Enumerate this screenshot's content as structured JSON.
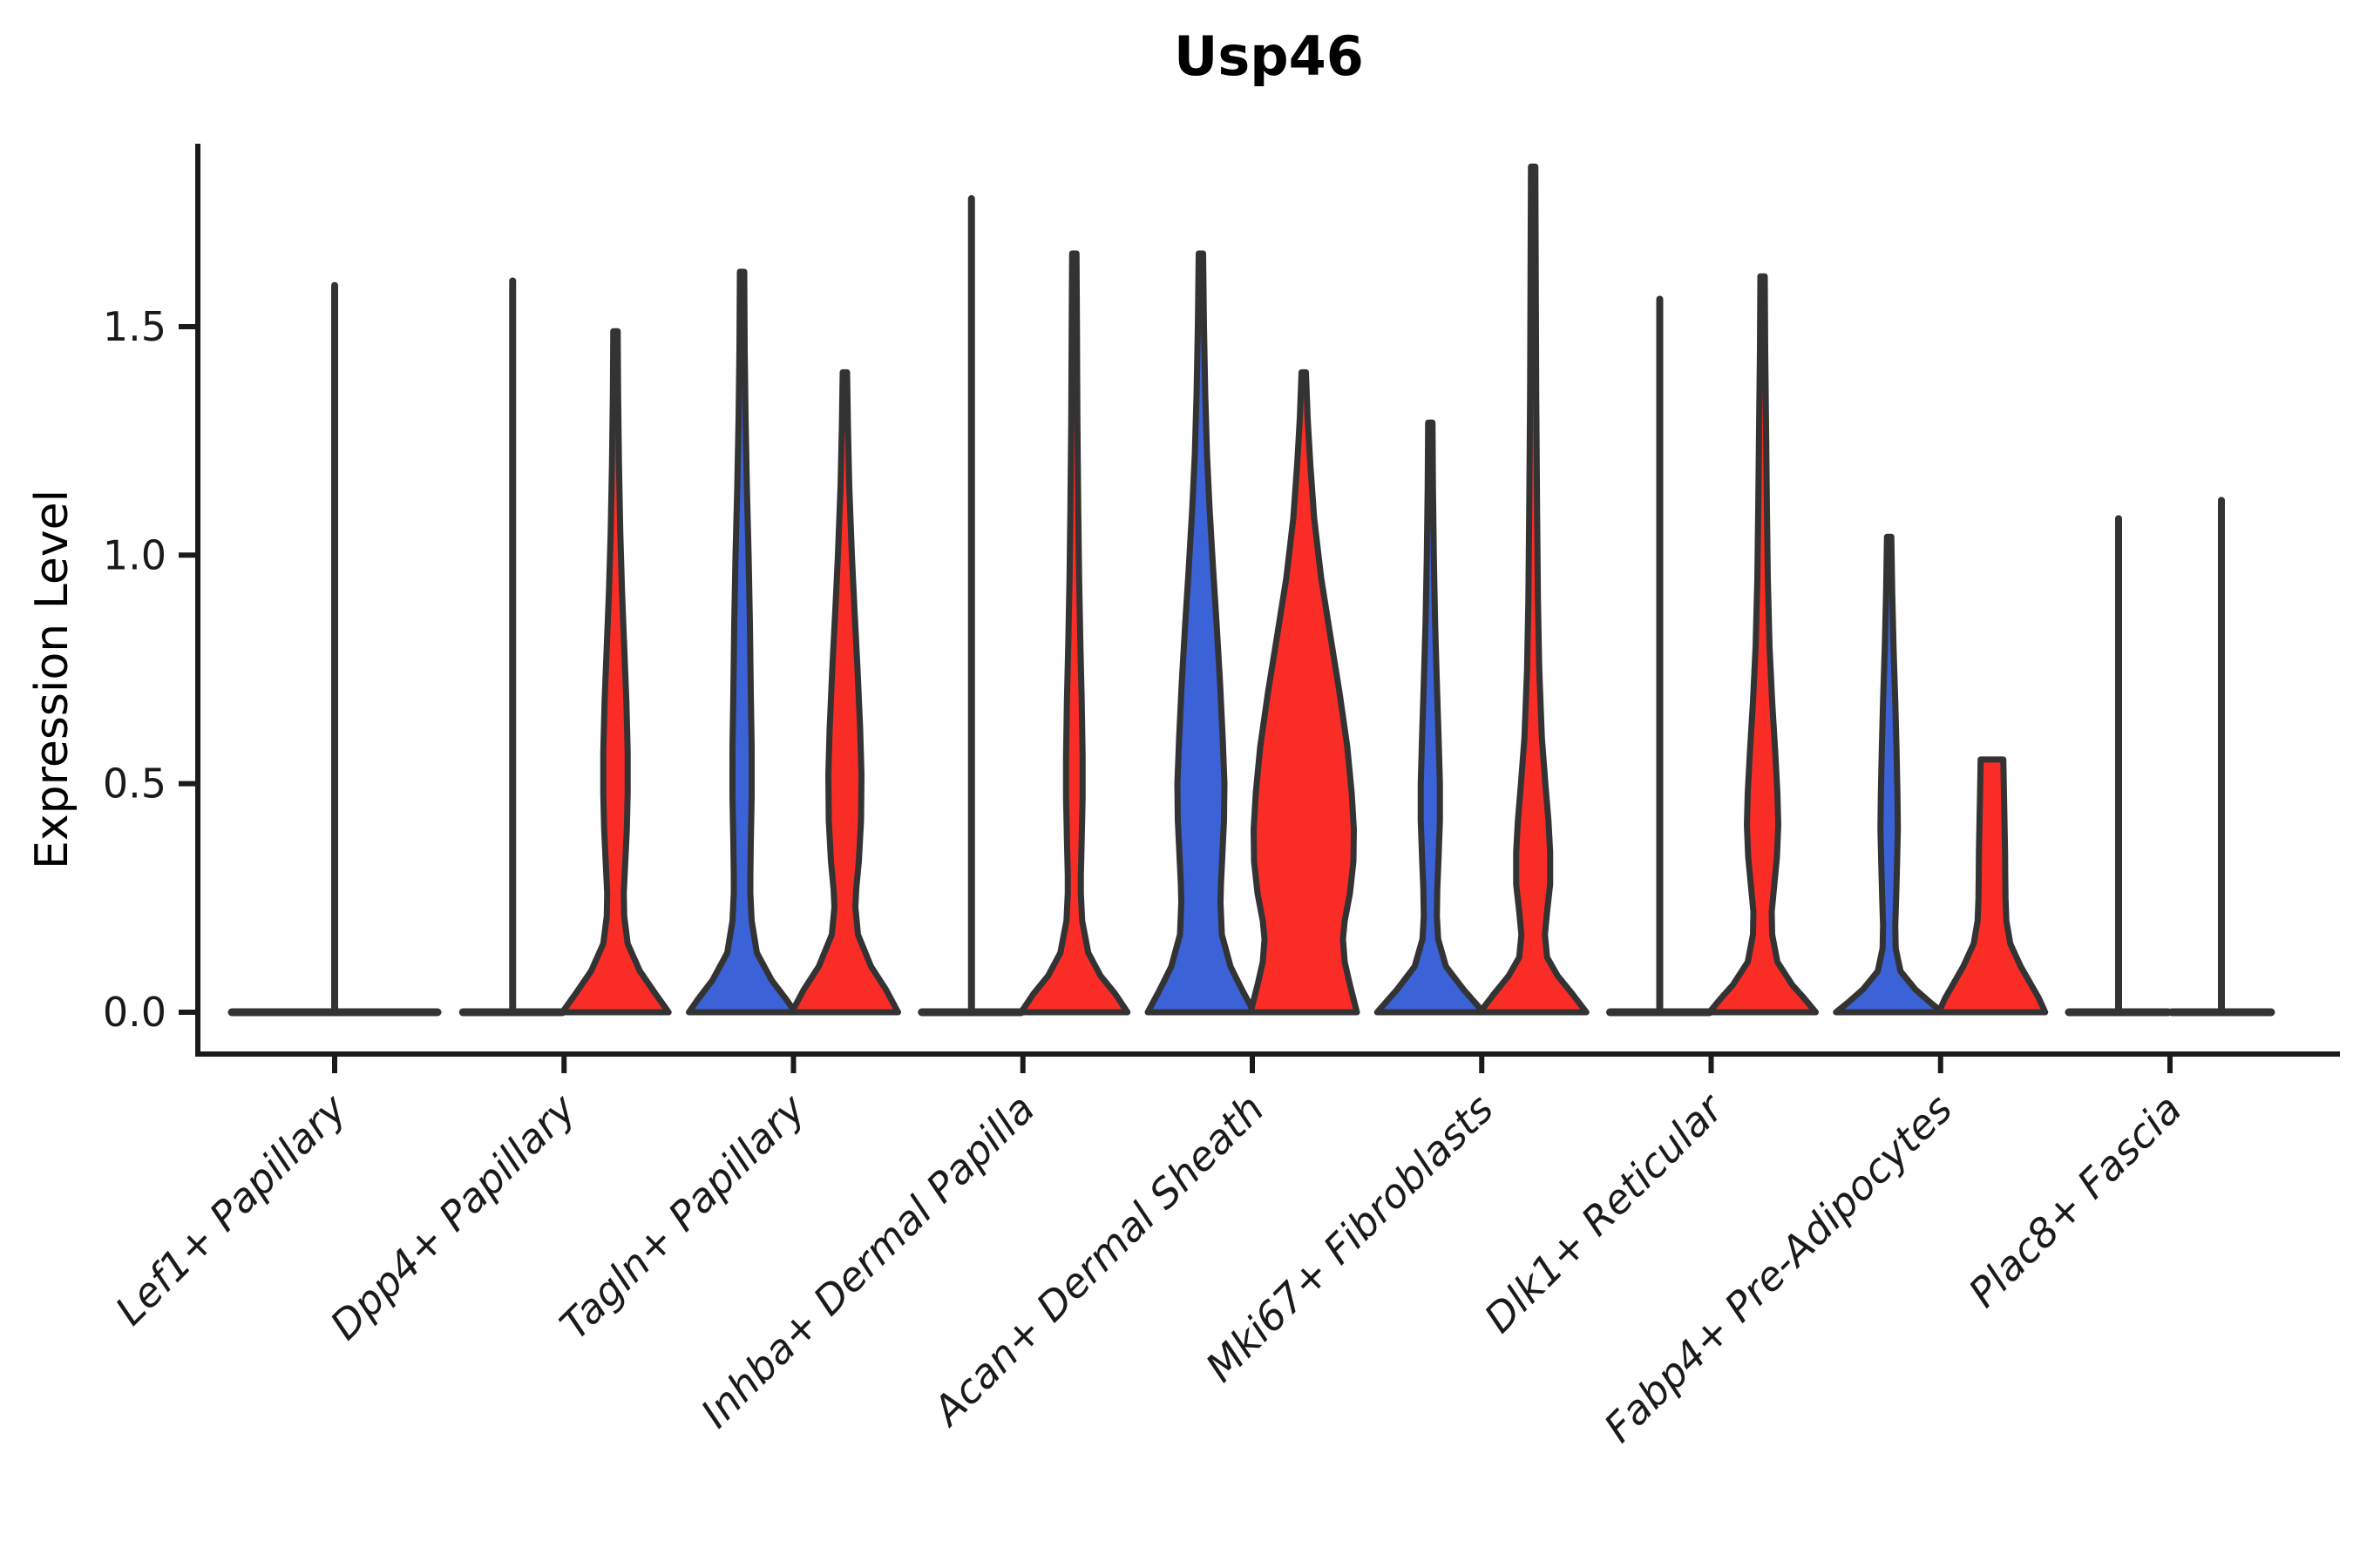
{
  "chart_data": {
    "type": "violin",
    "title": "Usp46",
    "ylabel": "Expression Level",
    "xlabel": "",
    "ylim": [
      -0.09,
      1.95
    ],
    "grid": false,
    "legend": "none",
    "yticks": [
      {
        "v": 0.0,
        "label": "0.0"
      },
      {
        "v": 0.5,
        "label": "0.5"
      },
      {
        "v": 1.0,
        "label": "1.0"
      },
      {
        "v": 1.5,
        "label": "1.5"
      }
    ],
    "split_colors": {
      "blue": "#3B62D6",
      "red": "#FA2D26",
      "outline": "#333333"
    },
    "categories": [
      "Lef1+ Papillary",
      "Dpp4+ Papillary",
      "Tagln+ Papillary",
      "Inhba+ Dermal Papilla",
      "Acan+ Dermal Sheath",
      "Mki67+ Fibroblasts",
      "Dlk1+ Reticular",
      "Fabp4+ Pre-Adipocytes",
      "Plac8+ Fascia"
    ],
    "groups": [
      {
        "category": "Lef1+ Papillary",
        "violins": [
          {
            "kind": "spike",
            "split": "both",
            "dx": 0,
            "top": 1.59,
            "base_hw": 122
          }
        ]
      },
      {
        "category": "Dpp4+ Papillary",
        "violins": [
          {
            "kind": "spike",
            "split": "blue",
            "dx": -59,
            "top": 1.6,
            "base_hw": 61
          },
          {
            "kind": "violin",
            "split": "red",
            "dx": 59,
            "top": 1.49,
            "profile": [
              [
                1.49,
                2.5
              ],
              [
                1.35,
                3
              ],
              [
                1.2,
                4
              ],
              [
                1.05,
                5.5
              ],
              [
                0.92,
                7.5
              ],
              [
                0.8,
                10
              ],
              [
                0.68,
                12.5
              ],
              [
                0.57,
                14
              ],
              [
                0.48,
                14
              ],
              [
                0.4,
                13
              ],
              [
                0.32,
                11
              ],
              [
                0.26,
                9.5
              ],
              [
                0.21,
                10
              ],
              [
                0.15,
                14
              ],
              [
                0.09,
                28
              ],
              [
                0.04,
                46
              ],
              [
                0,
                61
              ]
            ]
          }
        ]
      },
      {
        "category": "Tagln+ Papillary",
        "violins": [
          {
            "kind": "violin",
            "split": "blue",
            "dx": -59,
            "top": 1.62,
            "profile": [
              [
                1.62,
                2.5
              ],
              [
                1.45,
                3
              ],
              [
                1.3,
                4
              ],
              [
                1.15,
                5.5
              ],
              [
                1.0,
                7.5
              ],
              [
                0.85,
                9
              ],
              [
                0.7,
                10
              ],
              [
                0.58,
                11
              ],
              [
                0.47,
                11
              ],
              [
                0.37,
                10
              ],
              [
                0.3,
                9.5
              ],
              [
                0.26,
                9.5
              ],
              [
                0.2,
                11
              ],
              [
                0.13,
                17
              ],
              [
                0.07,
                34
              ],
              [
                0.03,
                50
              ],
              [
                0,
                61
              ]
            ]
          },
          {
            "kind": "violin",
            "split": "red",
            "dx": 59,
            "top": 1.4,
            "profile": [
              [
                1.4,
                2.5
              ],
              [
                1.28,
                3.5
              ],
              [
                1.15,
                5
              ],
              [
                1.0,
                8
              ],
              [
                0.88,
                11
              ],
              [
                0.75,
                14.5
              ],
              [
                0.62,
                17.5
              ],
              [
                0.52,
                19
              ],
              [
                0.42,
                18.5
              ],
              [
                0.33,
                16
              ],
              [
                0.27,
                13
              ],
              [
                0.23,
                12
              ],
              [
                0.17,
                15
              ],
              [
                0.1,
                30
              ],
              [
                0.05,
                47
              ],
              [
                0,
                61
              ]
            ]
          }
        ]
      },
      {
        "category": "Inhba+ Dermal Papilla",
        "violins": [
          {
            "kind": "spike",
            "split": "blue",
            "dx": -59,
            "top": 1.78,
            "base_hw": 61
          },
          {
            "kind": "violin",
            "split": "red",
            "dx": 59,
            "top": 1.66,
            "profile": [
              [
                1.66,
                2.5
              ],
              [
                1.5,
                3
              ],
              [
                1.3,
                3.5
              ],
              [
                1.1,
                4.5
              ],
              [
                0.95,
                5.5
              ],
              [
                0.8,
                7
              ],
              [
                0.68,
                8.5
              ],
              [
                0.56,
                9.5
              ],
              [
                0.47,
                9.5
              ],
              [
                0.38,
                8.5
              ],
              [
                0.3,
                7.5
              ],
              [
                0.26,
                7.5
              ],
              [
                0.2,
                9
              ],
              [
                0.13,
                16
              ],
              [
                0.08,
                30
              ],
              [
                0.04,
                47
              ],
              [
                0,
                61
              ]
            ]
          }
        ]
      },
      {
        "category": "Acan+ Dermal Sheath",
        "violins": [
          {
            "kind": "violin",
            "split": "blue",
            "dx": -59,
            "top": 1.66,
            "profile": [
              [
                1.66,
                2.5
              ],
              [
                1.5,
                3.5
              ],
              [
                1.35,
                5
              ],
              [
                1.22,
                7
              ],
              [
                1.1,
                10
              ],
              [
                0.97,
                14
              ],
              [
                0.85,
                18
              ],
              [
                0.72,
                22
              ],
              [
                0.6,
                25
              ],
              [
                0.5,
                27
              ],
              [
                0.42,
                26.5
              ],
              [
                0.34,
                24.5
              ],
              [
                0.28,
                23
              ],
              [
                0.24,
                22.5
              ],
              [
                0.17,
                24
              ],
              [
                0.1,
                34
              ],
              [
                0.05,
                47
              ],
              [
                0,
                61
              ]
            ]
          },
          {
            "kind": "violin",
            "split": "red",
            "dx": 59,
            "top": 1.4,
            "profile": [
              [
                1.4,
                2.5
              ],
              [
                1.3,
                4.5
              ],
              [
                1.2,
                7.5
              ],
              [
                1.08,
                12
              ],
              [
                0.95,
                20
              ],
              [
                0.83,
                30
              ],
              [
                0.7,
                41
              ],
              [
                0.58,
                50
              ],
              [
                0.48,
                55
              ],
              [
                0.4,
                57.5
              ],
              [
                0.33,
                57
              ],
              [
                0.26,
                53
              ],
              [
                0.2,
                47
              ],
              [
                0.16,
                45
              ],
              [
                0.11,
                47
              ],
              [
                0.06,
                53
              ],
              [
                0,
                61
              ]
            ]
          }
        ]
      },
      {
        "category": "Mki67+ Fibroblasts",
        "violins": [
          {
            "kind": "violin",
            "split": "blue",
            "dx": -59,
            "top": 1.29,
            "profile": [
              [
                1.29,
                2.5
              ],
              [
                1.15,
                3
              ],
              [
                1.0,
                4
              ],
              [
                0.85,
                5.5
              ],
              [
                0.72,
                7.5
              ],
              [
                0.6,
                9.5
              ],
              [
                0.5,
                11
              ],
              [
                0.42,
                11
              ],
              [
                0.34,
                9.5
              ],
              [
                0.27,
                8
              ],
              [
                0.21,
                7.5
              ],
              [
                0.16,
                9
              ],
              [
                0.1,
                18
              ],
              [
                0.05,
                38
              ],
              [
                0,
                61
              ]
            ]
          },
          {
            "kind": "violin",
            "split": "red",
            "dx": 59,
            "top": 1.85,
            "profile": [
              [
                1.85,
                2.5
              ],
              [
                1.6,
                3
              ],
              [
                1.35,
                3.5
              ],
              [
                1.1,
                4.5
              ],
              [
                0.9,
                5.5
              ],
              [
                0.75,
                7
              ],
              [
                0.6,
                10
              ],
              [
                0.5,
                14
              ],
              [
                0.42,
                17.5
              ],
              [
                0.35,
                19.5
              ],
              [
                0.28,
                19.5
              ],
              [
                0.22,
                16
              ],
              [
                0.17,
                13.5
              ],
              [
                0.12,
                16
              ],
              [
                0.08,
                28
              ],
              [
                0.04,
                45
              ],
              [
                0,
                61
              ]
            ]
          }
        ]
      },
      {
        "category": "Dlk1+ Reticular",
        "violins": [
          {
            "kind": "spike",
            "split": "blue",
            "dx": -59,
            "top": 1.56,
            "base_hw": 61
          },
          {
            "kind": "violin",
            "split": "red",
            "dx": 59,
            "top": 1.61,
            "profile": [
              [
                1.61,
                2.5
              ],
              [
                1.45,
                3
              ],
              [
                1.28,
                4
              ],
              [
                1.1,
                5
              ],
              [
                0.95,
                6
              ],
              [
                0.8,
                8
              ],
              [
                0.68,
                11
              ],
              [
                0.57,
                14.5
              ],
              [
                0.48,
                17
              ],
              [
                0.41,
                18
              ],
              [
                0.34,
                16.5
              ],
              [
                0.27,
                13
              ],
              [
                0.22,
                10.5
              ],
              [
                0.17,
                11
              ],
              [
                0.11,
                17
              ],
              [
                0.06,
                34
              ],
              [
                0.03,
                48
              ],
              [
                0,
                61
              ]
            ]
          }
        ]
      },
      {
        "category": "Fabp4+ Pre-Adipocytes",
        "violins": [
          {
            "kind": "violin",
            "split": "blue",
            "dx": -59,
            "top": 1.04,
            "profile": [
              [
                1.04,
                2.5
              ],
              [
                0.92,
                3.5
              ],
              [
                0.8,
                5
              ],
              [
                0.68,
                7
              ],
              [
                0.57,
                8.5
              ],
              [
                0.48,
                9.5
              ],
              [
                0.4,
                10
              ],
              [
                0.32,
                9
              ],
              [
                0.25,
                8
              ],
              [
                0.19,
                7
              ],
              [
                0.14,
                7.5
              ],
              [
                0.09,
                13
              ],
              [
                0.05,
                30
              ],
              [
                0.02,
                48
              ],
              [
                0,
                61
              ]
            ]
          },
          {
            "kind": "violin",
            "split": "red",
            "dx": 59,
            "top": 0.553,
            "flat_top": true,
            "profile": [
              [
                0.553,
                13
              ],
              [
                0.5,
                13.5
              ],
              [
                0.45,
                14
              ],
              [
                0.4,
                14.5
              ],
              [
                0.35,
                15
              ],
              [
                0.3,
                15.2
              ],
              [
                0.25,
                15.5
              ],
              [
                0.2,
                16.5
              ],
              [
                0.15,
                21
              ],
              [
                0.1,
                33
              ],
              [
                0.06,
                45
              ],
              [
                0.03,
                54
              ],
              [
                0,
                61
              ]
            ]
          }
        ]
      },
      {
        "category": "Plac8+ Fascia",
        "violins": [
          {
            "kind": "spike",
            "split": "blue",
            "dx": -59,
            "top": 1.08,
            "base_hw": 61
          },
          {
            "kind": "spike",
            "split": "red",
            "dx": 59,
            "top": 1.12,
            "base_hw": 61
          }
        ]
      }
    ]
  }
}
